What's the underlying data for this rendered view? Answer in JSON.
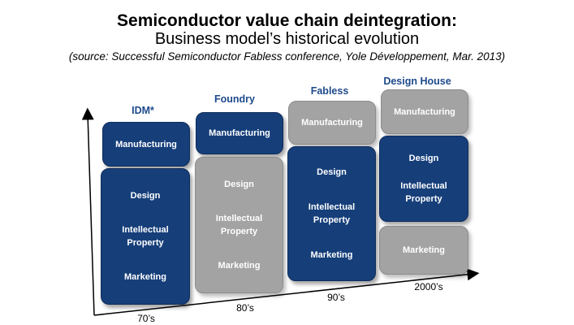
{
  "title": "Semiconductor value chain deintegration:",
  "subtitle": "Business model’s historical evolution",
  "source": "(source: Successful Semiconductor Fabless conference, Yole Développement, Mar. 2013)",
  "columns": [
    {
      "label": "IDM*",
      "top_box": {
        "text": "Manufacturing"
      },
      "bottom_box": {
        "items": [
          "Design",
          "Intellectual Property",
          "Marketing"
        ]
      }
    },
    {
      "label": "Foundry",
      "top_box": {
        "text": "Manufacturing"
      },
      "bottom_box": {
        "items": [
          "Design",
          "Intellectual Property",
          "Marketing"
        ]
      }
    },
    {
      "label": "Fabless",
      "top_box": {
        "text": "Manufacturing"
      },
      "bottom_box": {
        "items": [
          "Design",
          "Intellectual Property",
          "Marketing"
        ]
      }
    },
    {
      "label": "Design House",
      "top_box": {
        "text": "Manufacturing"
      },
      "middle_box": {
        "items": [
          "Design",
          "Intellectual Property"
        ]
      },
      "bottom_box": {
        "items": [
          "Marketing"
        ]
      }
    }
  ],
  "eras": [
    "70’s",
    "80’s",
    "90’s",
    "2000’s"
  ],
  "colors": {
    "blue": "#163f7a",
    "gray": "#a3a3a3",
    "label_blue": "#1e4a8c"
  }
}
